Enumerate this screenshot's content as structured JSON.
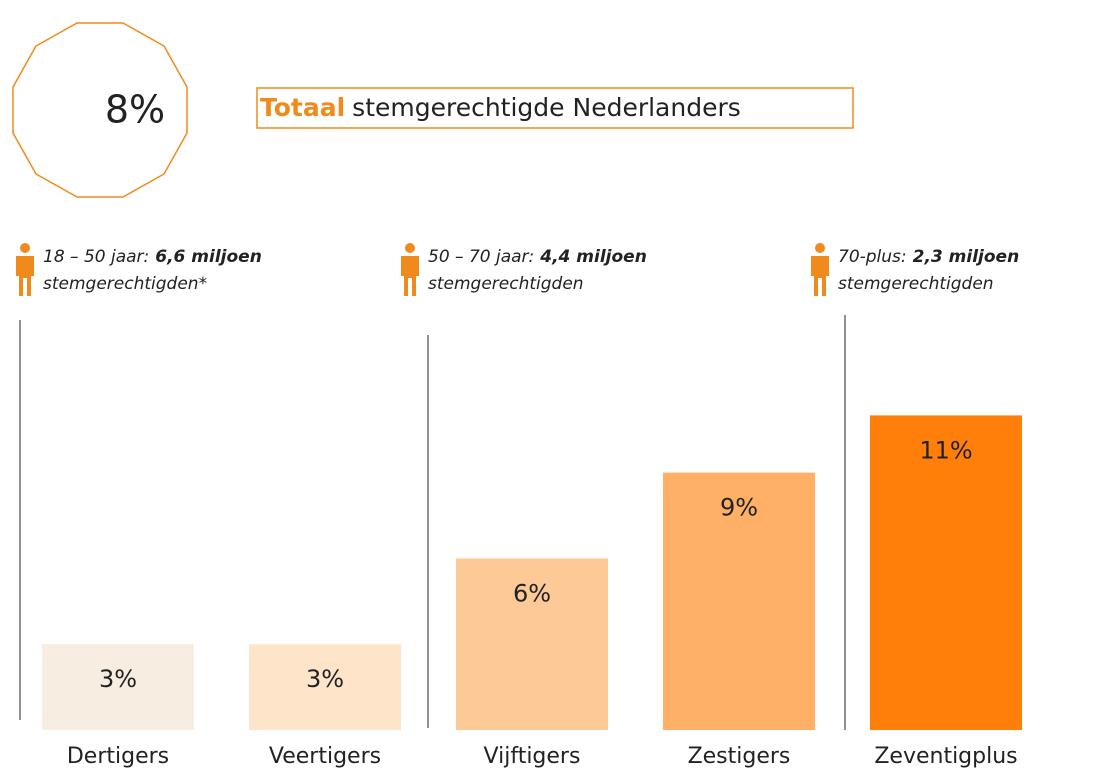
{
  "total": {
    "label": "8%",
    "title_bold": "Totaal",
    "title": "stemgerechtigde Nederlanders"
  },
  "groups": [
    {
      "range": "18 – 50 jaar:",
      "count": "6,6 miljoen",
      "suffix": "stemgerechtigden*"
    },
    {
      "range": "50 – 70 jaar:",
      "count": "4,4 miljoen",
      "suffix": "stemgerechtigden"
    },
    {
      "range": "70-plus:",
      "count": "2,3 miljoen",
      "suffix": "stemgerechtigden"
    }
  ],
  "chart_data": {
    "type": "bar",
    "categories": [
      "Dertigers",
      "Veertigers",
      "Vijftigers",
      "Zestigers",
      "Zeventigplus"
    ],
    "values": [
      3,
      3,
      6,
      9,
      11
    ],
    "value_labels": [
      "3%",
      "3%",
      "6%",
      "9%",
      "11%"
    ],
    "colors": [
      "#f8ede1",
      "#fee4c9",
      "#fdca97",
      "#fdb066",
      "#ff7f0a"
    ]
  }
}
